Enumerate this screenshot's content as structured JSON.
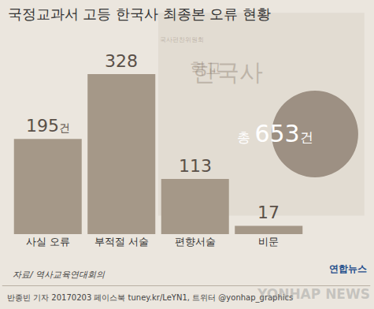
{
  "chart_data": {
    "type": "bar",
    "title": "국정교과서 고등 한국사 최종본 오류 현황",
    "categories": [
      "사실 오류",
      "부적절 서술",
      "편향서술",
      "비문"
    ],
    "values": [
      195,
      328,
      113,
      17
    ],
    "value_labels": [
      "195건",
      "328",
      "113",
      "17"
    ],
    "data_labels": true,
    "color": "#a59888",
    "tick_labels": "x",
    "grid": false,
    "total_label": "총 653건",
    "source": "자료/ 역사교육연대회의",
    "credit": "반종빈 기자 20170203 페이스북 tuney.kr/LeYN1, 트위터 @yonhap_graphics",
    "logo": "연합뉴스",
    "watermark": "YONHAP NEWS",
    "background_texts": [
      "국사편찬위원회",
      "학교",
      "한국사"
    ]
  }
}
